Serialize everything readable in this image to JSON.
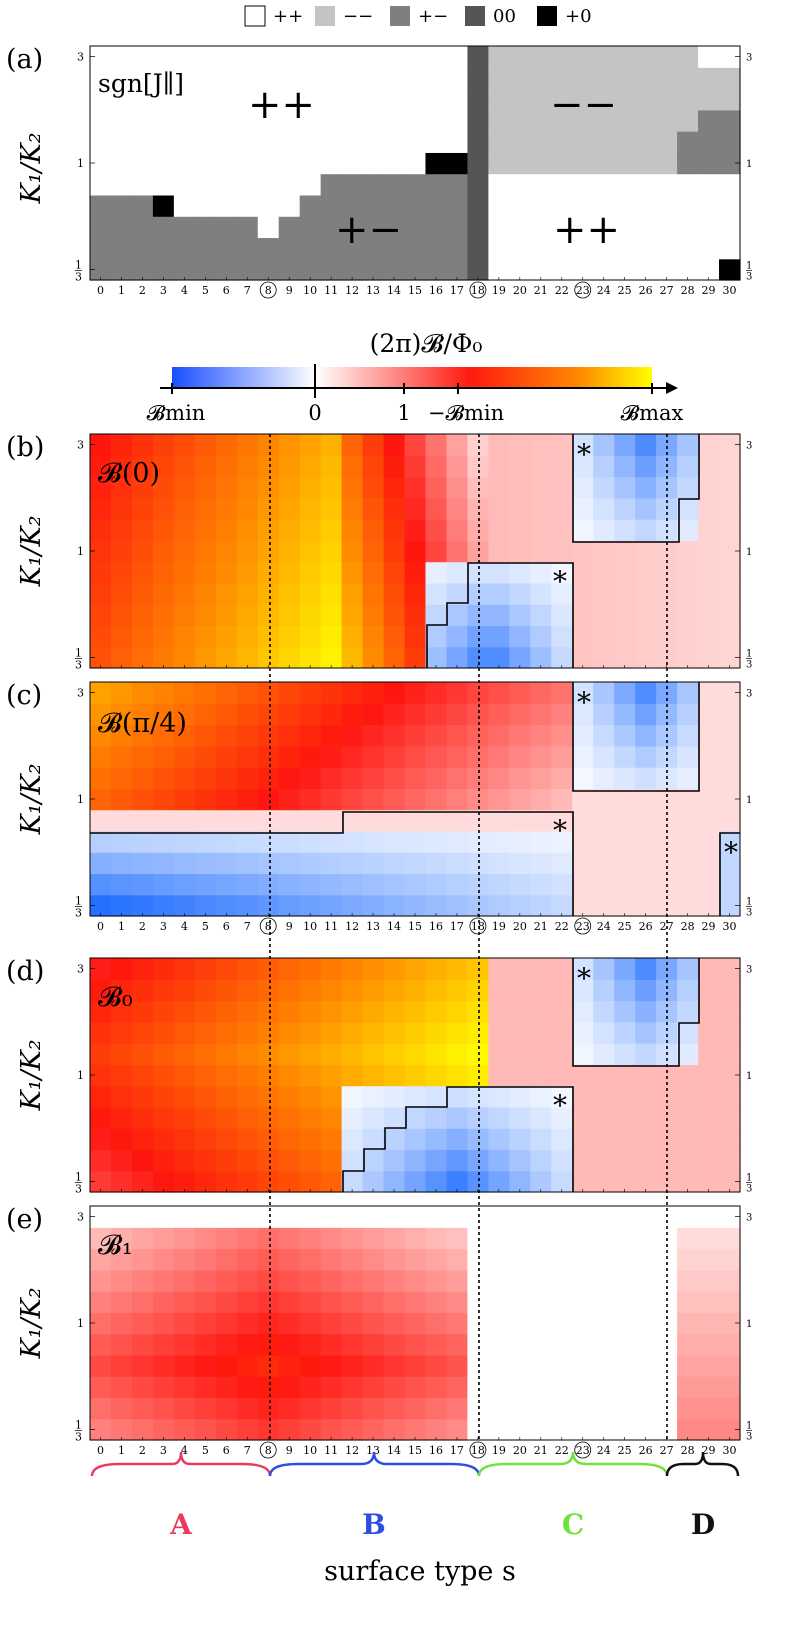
{
  "legend": [
    {
      "label": "++",
      "color": "#ffffff"
    },
    {
      "label": "−−",
      "color": "#c4c4c4"
    },
    {
      "label": "+−",
      "color": "#7f7f7f"
    },
    {
      "label": "00",
      "color": "#555555"
    },
    {
      "label": "+0",
      "color": "#000000"
    }
  ],
  "panels": [
    {
      "key": "a",
      "label": "(a)",
      "title": "sgn[J∥]",
      "annotations": [
        "++",
        "−−",
        "+−",
        "++"
      ]
    },
    {
      "key": "b",
      "label": "(b)",
      "title": "𝓑(0)",
      "annotations": [
        "*",
        "*"
      ]
    },
    {
      "key": "c",
      "label": "(c)",
      "title": "𝓑(π/4)",
      "annotations": [
        "*",
        "*",
        "*"
      ]
    },
    {
      "key": "d",
      "label": "(d)",
      "title": "𝓑₀",
      "annotations": [
        "*",
        "*"
      ]
    },
    {
      "key": "e",
      "label": "(e)",
      "title": "𝓑₁",
      "annotations": []
    }
  ],
  "ylabel": "K₁/K₂",
  "yticks": [
    "1/3",
    "1",
    "3"
  ],
  "xticks": [
    "0",
    "1",
    "2",
    "3",
    "4",
    "5",
    "6",
    "7",
    "8",
    "9",
    "10",
    "11",
    "12",
    "13",
    "14",
    "15",
    "16",
    "17",
    "18",
    "19",
    "20",
    "21",
    "22",
    "23",
    "24",
    "25",
    "26",
    "27",
    "28",
    "29",
    "30"
  ],
  "circled_ticks": [
    8,
    18,
    23
  ],
  "colorbar": {
    "title": "(2π)𝓑/Φ₀",
    "labels": [
      "𝓑min",
      "0",
      "1",
      "−𝓑min",
      "𝓑max"
    ]
  },
  "xlabel": "surface type s",
  "regions": [
    {
      "label": "A",
      "range": [
        0,
        8
      ],
      "color": "#ec3a5c"
    },
    {
      "label": "B",
      "range": [
        8,
        18
      ],
      "color": "#2c4fe0"
    },
    {
      "label": "C",
      "range": [
        18,
        27
      ],
      "color": "#6ee43a"
    },
    {
      "label": "D",
      "range": [
        27,
        30
      ],
      "color": "#111111"
    }
  ],
  "chart_data": [
    {
      "type": "heatmap",
      "panel": "a",
      "title": "sgn[J∥]",
      "x": "s = 0..30",
      "y": "K1/K2 from 1/3 to 3 (log scale), 11 rows",
      "categories": [
        "++",
        "−−",
        "+−",
        "00",
        "+0"
      ],
      "row_blocks": "s=0..17: +− below about K1/K2 0.6–0.85, ++ above; s=18: 00; s=19..30: ++ below 1, −− above 1"
    },
    {
      "type": "heatmap",
      "panel": "b",
      "title": "𝓑(0)",
      "x": "s = 0..30",
      "y": "K1/K2 1/3..3"
    },
    {
      "type": "heatmap",
      "panel": "c",
      "title": "𝓑(π/4)",
      "x": "s = 0..30",
      "y": "K1/K2 1/3..3"
    },
    {
      "type": "heatmap",
      "panel": "d",
      "title": "𝓑₀",
      "x": "s = 0..30",
      "y": "K1/K2 1/3..3"
    },
    {
      "type": "heatmap",
      "panel": "e",
      "title": "𝓑₁",
      "x": "s = 0..30",
      "y": "K1/K2 1/3..3"
    }
  ]
}
